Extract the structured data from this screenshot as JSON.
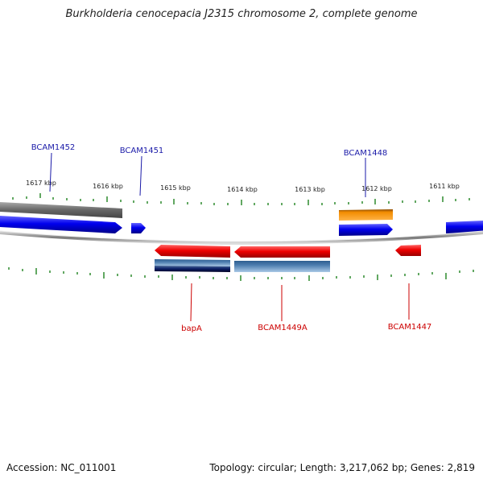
{
  "title": "Burkholderia cenocepacia J2315 chromosome 2, complete genome",
  "ruler": {
    "labels": [
      "1617 kbp",
      "1616 kbp",
      "1615 kbp",
      "1614 kbp",
      "1613 kbp",
      "1612 kbp",
      "1611 kbp"
    ]
  },
  "gene_labels": {
    "forward": [
      "BCAM1452",
      "BCAM1451",
      "BCAM1448"
    ],
    "reverse": [
      "bapA",
      "BCAM1449A",
      "BCAM1447"
    ]
  },
  "colors": {
    "forward_cds": "#0000ee",
    "reverse_cds": "#ee0000",
    "forward_label": "#1a1aa8",
    "reverse_label": "#cc0000",
    "gray_feature": "#6b6b6b",
    "orange_feature": "#f28c00",
    "steelblue_feature": "#4f7fb0",
    "navy_feature": "#0b1f66",
    "tick": "#2e8b2e",
    "backbone": "#999999"
  },
  "footer": {
    "accession": "Accession: NC_011001",
    "summary": "Topology: circular; Length: 3,217,062 bp; Genes: 2,819"
  }
}
